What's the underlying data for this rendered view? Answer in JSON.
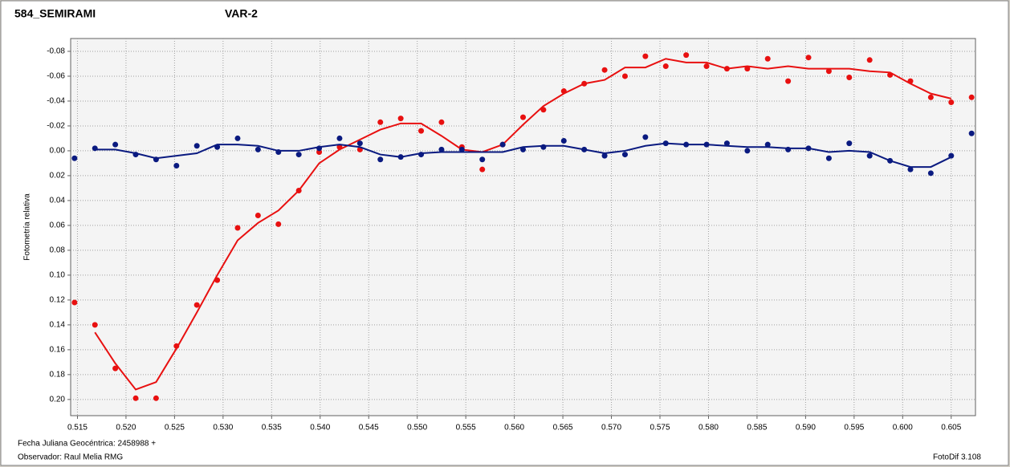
{
  "chart_data": {
    "type": "scatter",
    "ylabel": "Fotometría relativa",
    "annotations": [
      "Fecha Juliana Geocéntrica: 2458988 +",
      "Observador: Raul Melia RMG",
      "FotoDif 3.108"
    ],
    "x": [
      0.5147,
      0.5168,
      0.5189,
      0.521,
      0.5231,
      0.5252,
      0.5273,
      0.5294,
      0.5315,
      0.5336,
      0.5357,
      0.5378,
      0.5399,
      0.542,
      0.5441,
      0.5462,
      0.5483,
      0.5504,
      0.5525,
      0.5546,
      0.5567,
      0.5588,
      0.5609,
      0.563,
      0.5651,
      0.5672,
      0.5693,
      0.5714,
      0.5735,
      0.5756,
      0.5777,
      0.5798,
      0.5819,
      0.584,
      0.5861,
      0.5882,
      0.5903,
      0.5924,
      0.5945,
      0.5966,
      0.5987,
      0.6008,
      0.6029,
      0.605,
      0.6071
    ],
    "series": [
      {
        "name": "584_SEMIRAMI",
        "color": "#e81010",
        "values": [
          0.122,
          0.14,
          0.175,
          0.199,
          0.199,
          0.157,
          0.124,
          0.104,
          0.062,
          0.052,
          0.059,
          0.032,
          0.001,
          -0.003,
          -0.001,
          -0.023,
          -0.026,
          -0.016,
          -0.023,
          -0.003,
          0.015,
          -0.005,
          -0.027,
          -0.033,
          -0.048,
          -0.054,
          -0.065,
          -0.06,
          -0.076,
          -0.068,
          -0.077,
          -0.068,
          -0.066,
          -0.066,
          -0.074,
          -0.056,
          -0.075,
          -0.064,
          -0.059,
          -0.073,
          -0.061,
          -0.056,
          -0.043,
          -0.039,
          -0.043
        ],
        "line": [
          null,
          0.146,
          0.171,
          0.192,
          0.186,
          0.159,
          0.13,
          0.1,
          0.072,
          0.058,
          0.048,
          0.032,
          0.01,
          -0.001,
          -0.009,
          -0.017,
          -0.022,
          -0.022,
          -0.012,
          -0.001,
          0.001,
          -0.005,
          -0.021,
          -0.036,
          -0.046,
          -0.054,
          -0.057,
          -0.067,
          -0.067,
          -0.074,
          -0.071,
          -0.071,
          -0.066,
          -0.068,
          -0.066,
          -0.068,
          -0.066,
          -0.066,
          -0.066,
          -0.064,
          -0.063,
          -0.054,
          -0.046,
          -0.042,
          null
        ]
      },
      {
        "name": "VAR-2",
        "color": "#0a1a80",
        "values": [
          0.006,
          -0.002,
          -0.005,
          0.003,
          0.007,
          0.012,
          -0.004,
          -0.003,
          -0.01,
          -0.001,
          0.001,
          0.003,
          -0.002,
          -0.01,
          -0.006,
          0.007,
          0.005,
          0.003,
          -0.001,
          -0.001,
          0.007,
          -0.005,
          -0.001,
          -0.003,
          -0.008,
          -0.001,
          0.004,
          0.003,
          -0.011,
          -0.006,
          -0.005,
          -0.005,
          -0.006,
          0.0,
          -0.005,
          -0.001,
          -0.002,
          0.006,
          -0.006,
          0.004,
          0.008,
          0.015,
          0.018,
          0.004,
          -0.014
        ],
        "line": [
          null,
          -0.001,
          -0.001,
          0.002,
          0.006,
          0.004,
          0.002,
          -0.005,
          -0.005,
          -0.004,
          0.0,
          0.0,
          -0.003,
          -0.005,
          -0.003,
          0.003,
          0.005,
          0.002,
          0.001,
          0.001,
          0.001,
          0.001,
          -0.003,
          -0.004,
          -0.004,
          -0.001,
          0.002,
          0.0,
          -0.004,
          -0.006,
          -0.005,
          -0.005,
          -0.004,
          -0.003,
          -0.003,
          -0.002,
          -0.002,
          0.001,
          0.0,
          0.001,
          0.008,
          0.013,
          0.013,
          0.005,
          null
        ]
      }
    ],
    "xlim": [
      0.5143,
      0.6075
    ],
    "ylim": [
      0.213,
      -0.0903
    ],
    "xticks": [
      {
        "value": 0.515,
        "label": "0.515"
      },
      {
        "value": 0.52,
        "label": "0.520"
      },
      {
        "value": 0.525,
        "label": "0.525"
      },
      {
        "value": 0.53,
        "label": "0.530"
      },
      {
        "value": 0.535,
        "label": "0.535"
      },
      {
        "value": 0.54,
        "label": "0.540"
      },
      {
        "value": 0.545,
        "label": "0.545"
      },
      {
        "value": 0.55,
        "label": "0.550"
      },
      {
        "value": 0.555,
        "label": "0.555"
      },
      {
        "value": 0.56,
        "label": "0.560"
      },
      {
        "value": 0.565,
        "label": "0.565"
      },
      {
        "value": 0.57,
        "label": "0.570"
      },
      {
        "value": 0.575,
        "label": "0.575"
      },
      {
        "value": 0.58,
        "label": "0.580"
      },
      {
        "value": 0.585,
        "label": "0.585"
      },
      {
        "value": 0.59,
        "label": "0.590"
      },
      {
        "value": 0.595,
        "label": "0.595"
      },
      {
        "value": 0.6,
        "label": "0.600"
      },
      {
        "value": 0.605,
        "label": "0.605"
      }
    ],
    "yticks": [
      {
        "value": -0.08,
        "label": "-0.08"
      },
      {
        "value": -0.06,
        "label": "-0.06"
      },
      {
        "value": -0.04,
        "label": "-0.04"
      },
      {
        "value": -0.02,
        "label": "-0.02"
      },
      {
        "value": 0,
        "label": "0.00"
      },
      {
        "value": 0.02,
        "label": "0.02"
      },
      {
        "value": 0.04,
        "label": "0.04"
      },
      {
        "value": 0.06,
        "label": "0.06"
      },
      {
        "value": 0.08,
        "label": "0.08"
      },
      {
        "value": 0.1,
        "label": "0.10"
      },
      {
        "value": 0.12,
        "label": "0.12"
      },
      {
        "value": 0.14,
        "label": "0.14"
      },
      {
        "value": 0.16,
        "label": "0.16"
      },
      {
        "value": 0.18,
        "label": "0.18"
      },
      {
        "value": 0.2,
        "label": "0.20"
      }
    ],
    "grid": true
  }
}
